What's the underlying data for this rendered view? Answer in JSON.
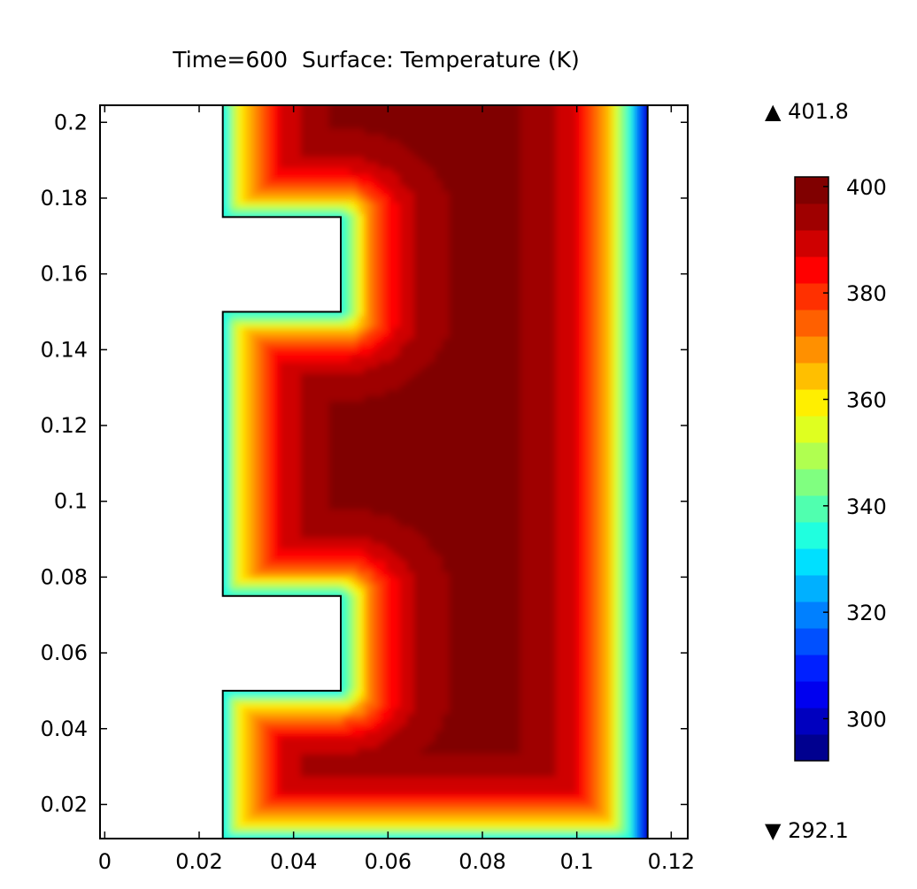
{
  "chart_data": {
    "type": "heatmap",
    "title": "Time=600  Surface: Temperature (K)",
    "xlabel": "",
    "ylabel": "",
    "xlim": [
      -0.001,
      0.1235
    ],
    "ylim": [
      0.011,
      0.2045
    ],
    "x_ticks": [
      0,
      0.02,
      0.04,
      0.06,
      0.08,
      0.1,
      0.12
    ],
    "x_tick_labels": [
      "0",
      "0.02",
      "0.04",
      "0.06",
      "0.08",
      "0.1",
      "0.12"
    ],
    "y_ticks": [
      0.02,
      0.04,
      0.06,
      0.08,
      0.1,
      0.12,
      0.14,
      0.16,
      0.18,
      0.2
    ],
    "y_tick_labels": [
      "0.02",
      "0.04",
      "0.06",
      "0.08",
      "0.1",
      "0.12",
      "0.14",
      "0.16",
      "0.18",
      "0.2"
    ],
    "colorbar": {
      "min": 292.1,
      "max": 401.8,
      "max_label": "▲ 401.8",
      "min_label": "▼ 292.1",
      "ticks": [
        300,
        320,
        340,
        360,
        380,
        400
      ],
      "tick_labels": [
        "300",
        "320",
        "340",
        "360",
        "380",
        "400"
      ],
      "colors": [
        "#00008f",
        "#0000bf",
        "#0000ef",
        "#0020ff",
        "#0050ff",
        "#0080ff",
        "#00b0ff",
        "#00e0ff",
        "#20ffdf",
        "#50ffaf",
        "#80ff80",
        "#b0ff50",
        "#dfff20",
        "#ffef00",
        "#ffbf00",
        "#ff9000",
        "#ff6000",
        "#ff3000",
        "#ff0000",
        "#cf0000",
        "#9f0000",
        "#800000"
      ]
    },
    "domain_outline": [
      [
        0.025,
        0.011
      ],
      [
        0.115,
        0.011
      ],
      [
        0.115,
        0.2045
      ],
      [
        0.025,
        0.2045
      ],
      [
        0.025,
        0.175
      ],
      [
        0.05,
        0.175
      ],
      [
        0.05,
        0.15
      ],
      [
        0.025,
        0.15
      ],
      [
        0.025,
        0.075
      ],
      [
        0.05,
        0.075
      ],
      [
        0.05,
        0.05
      ],
      [
        0.025,
        0.05
      ]
    ],
    "field_description": {
      "core_temperature": 400,
      "outer_wall_x": 0.115,
      "outer_wall_temperature": 293,
      "inner_boundary_temperature": 330
    }
  }
}
